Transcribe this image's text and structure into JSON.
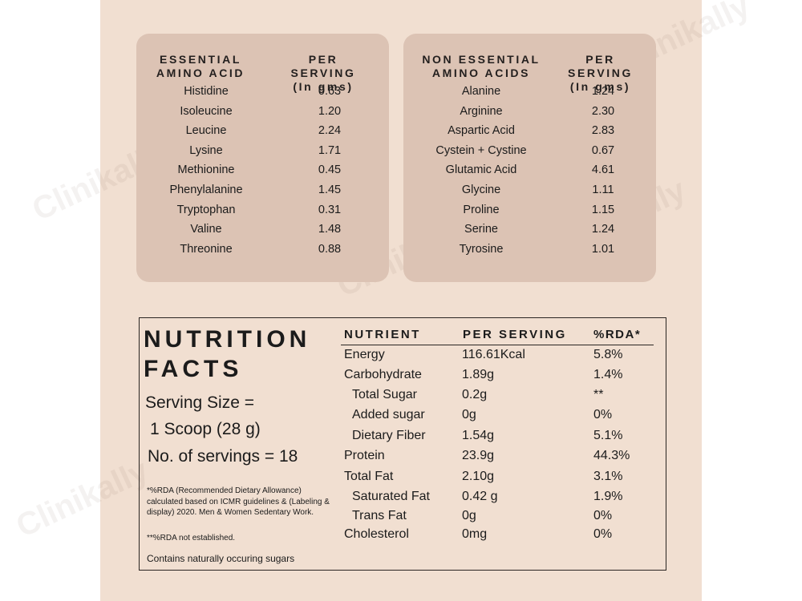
{
  "essential": {
    "header_name": "ESSENTIAL\nAMINO ACID",
    "header_value": "PER SERVING\n(In gms)",
    "rows": [
      {
        "name": "Histidine",
        "value": "0.63"
      },
      {
        "name": "Isoleucine",
        "value": "1.20"
      },
      {
        "name": "Leucine",
        "value": "2.24"
      },
      {
        "name": "Lysine",
        "value": "1.71"
      },
      {
        "name": "Methionine",
        "value": "0.45"
      },
      {
        "name": "Phenylalanine",
        "value": "1.45"
      },
      {
        "name": "Tryptophan",
        "value": "0.31"
      },
      {
        "name": "Valine",
        "value": "1.48"
      },
      {
        "name": "Threonine",
        "value": "0.88"
      }
    ]
  },
  "non_essential": {
    "header_name": "NON ESSENTIAL\nAMINO ACIDS",
    "header_value": "PER SERVING\n(In gms)",
    "rows": [
      {
        "name": "Alanine",
        "value": "1.24"
      },
      {
        "name": "Arginine",
        "value": "2.30"
      },
      {
        "name": "Aspartic Acid",
        "value": "2.83"
      },
      {
        "name": "Cystein + Cystine",
        "value": "0.67"
      },
      {
        "name": "Glutamic Acid",
        "value": "4.61"
      },
      {
        "name": "Glycine",
        "value": "1.11"
      },
      {
        "name": "Proline",
        "value": "1.15"
      },
      {
        "name": "Serine",
        "value": "1.24"
      },
      {
        "name": "Tyrosine",
        "value": "1.01"
      }
    ]
  },
  "nutrition": {
    "title": "NUTRITION\nFACTS",
    "serving_size_line1": "Serving Size =",
    "serving_size_line2": "1 Scoop (28 g)",
    "servings": "No. of servings = 18",
    "footnote_rda": "*%RDA (Recommended Dietary Allowance) calculated based on ICMR guidelines & (Labeling & display) 2020. Men & Women Sedentary Work.",
    "footnote_na": "**%RDA not established.",
    "contains": "Contains naturally occuring sugars",
    "col_nutrient": "NUTRIENT",
    "col_per_serving": "PER SERVING",
    "col_rda": "%RDA*",
    "rows": [
      {
        "name": "Energy",
        "value": "116.61Kcal",
        "rda": "5.8%",
        "indent": false
      },
      {
        "name": "Carbohydrate",
        "value": "1.89g",
        "rda": "1.4%",
        "indent": false
      },
      {
        "name": "Total Sugar",
        "value": "0.2g",
        "rda": "**",
        "indent": true
      },
      {
        "name": "Added sugar",
        "value": "0g",
        "rda": "0%",
        "indent": true
      },
      {
        "name": "Dietary Fiber",
        "value": "1.54g",
        "rda": "5.1%",
        "indent": true
      },
      {
        "name": "Protein",
        "value": "23.9g",
        "rda": "44.3%",
        "indent": false
      },
      {
        "name": "Total Fat",
        "value": "2.10g",
        "rda": "3.1%",
        "indent": false
      },
      {
        "name": "Saturated Fat",
        "value": "0.42 g",
        "rda": "1.9%",
        "indent": true
      },
      {
        "name": "Trans Fat",
        "value": "0g",
        "rda": "0%",
        "indent": true
      },
      {
        "name": "Cholesterol",
        "value": "0mg",
        "rda": "0%",
        "indent": false
      }
    ]
  },
  "watermark": "Clinikally"
}
